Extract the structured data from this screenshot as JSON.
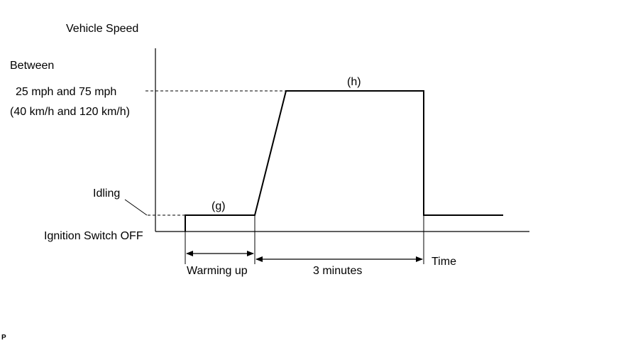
{
  "diagram": {
    "y_axis_title": "Vehicle Speed",
    "speed_range": {
      "line1": "Between",
      "line2": "25 mph and 75 mph",
      "line3": "(40 km/h and 120 km/h)"
    },
    "idling_label": "Idling",
    "ignition_off_label": "Ignition Switch OFF",
    "x_axis_title": "Time",
    "phase_g_label": "(g)",
    "phase_h_label": "(h)",
    "interval_warming": "Warming up",
    "interval_three_min": "3 minutes",
    "footer_mark": "P"
  }
}
